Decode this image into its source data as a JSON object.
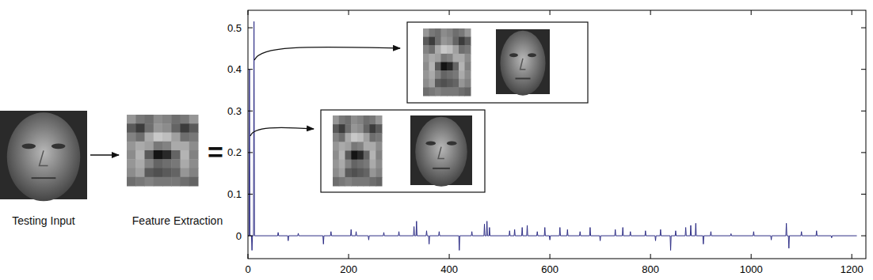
{
  "chart_data": {
    "type": "line",
    "xlim": [
      0,
      1228
    ],
    "xticks": [
      0,
      200,
      400,
      600,
      800,
      1000,
      1200
    ],
    "ylim": [
      -0.055,
      0.542
    ],
    "yticks": [
      0,
      0.1,
      0.2,
      0.3,
      0.4,
      0.5
    ],
    "grid": false,
    "series": [
      {
        "color": "#2e2e86",
        "x": [
          0,
          2,
          3,
          4,
          7,
          8,
          9,
          11,
          12,
          13,
          59,
          60,
          61,
          79,
          80,
          81,
          99,
          100,
          101,
          149,
          150,
          151,
          164,
          165,
          166,
          204,
          205,
          206,
          214,
          215,
          216,
          239,
          240,
          241,
          269,
          270,
          271,
          299,
          300,
          301,
          329,
          330,
          331,
          334,
          335,
          336,
          354,
          355,
          356,
          359,
          360,
          361,
          379,
          380,
          381,
          419,
          420,
          421,
          444,
          445,
          446,
          469,
          470,
          471,
          474,
          475,
          476,
          479,
          480,
          481,
          519,
          520,
          521,
          529,
          530,
          531,
          544,
          545,
          546,
          554,
          555,
          556,
          574,
          575,
          576,
          589,
          590,
          591,
          599,
          600,
          601,
          619,
          620,
          621,
          634,
          635,
          636,
          659,
          660,
          661,
          679,
          680,
          681,
          699,
          700,
          701,
          729,
          730,
          731,
          744,
          745,
          746,
          759,
          760,
          761,
          789,
          790,
          791,
          809,
          810,
          811,
          819,
          820,
          821,
          839,
          840,
          841,
          849,
          850,
          851,
          869,
          870,
          871,
          879,
          880,
          881,
          889,
          890,
          891,
          904,
          905,
          906,
          919,
          920,
          921,
          959,
          960,
          961,
          1004,
          1005,
          1006,
          1039,
          1040,
          1041,
          1069,
          1070,
          1071,
          1074,
          1075,
          1076,
          1099,
          1100,
          1101,
          1129,
          1130,
          1131,
          1159,
          1160,
          1161,
          1210
        ],
        "values": [
          0,
          0,
          0.4,
          0,
          0,
          -0.035,
          0,
          0,
          0.515,
          0,
          0,
          0.008,
          0,
          0,
          -0.012,
          0,
          0,
          0.006,
          0,
          0,
          -0.02,
          0,
          0,
          0.01,
          0,
          0,
          0.015,
          0,
          0,
          0.01,
          0,
          0,
          -0.01,
          0,
          0,
          0.008,
          0,
          0,
          0.01,
          0,
          0,
          0.022,
          0,
          0,
          0.035,
          0,
          0,
          0.012,
          0,
          0,
          -0.02,
          0,
          0,
          0.01,
          0,
          0,
          -0.035,
          0,
          0,
          0.01,
          0,
          0,
          0.028,
          0,
          0,
          0.035,
          0,
          0,
          0.02,
          0,
          0,
          0.012,
          0,
          0,
          0.015,
          0,
          0,
          0.02,
          0,
          0,
          0.025,
          0,
          0,
          0.01,
          0,
          0,
          0.02,
          0,
          0,
          -0.01,
          0,
          0,
          0.02,
          0,
          0,
          0.015,
          0,
          0,
          0.01,
          0,
          0,
          0.02,
          0,
          0,
          -0.012,
          0,
          0,
          0.015,
          0,
          0,
          0.02,
          0,
          0,
          0.01,
          0,
          0,
          0.012,
          0,
          0,
          -0.012,
          0,
          0,
          0.015,
          0,
          0,
          -0.035,
          0,
          0,
          0.012,
          0,
          0,
          0.02,
          0,
          0,
          0.025,
          0,
          0,
          0.03,
          0,
          0,
          -0.02,
          0,
          0,
          0.01,
          0,
          0,
          0.005,
          0,
          0,
          0.01,
          0,
          0,
          -0.01,
          0,
          0,
          0.03,
          0,
          0,
          -0.03,
          0,
          0,
          0.01,
          0,
          0,
          0.012,
          0,
          0,
          -0.005,
          0,
          0
        ]
      }
    ]
  },
  "figure": {
    "testing_input": "Testing Input",
    "feature_extraction": "Feature Extraction",
    "equals": "=",
    "feature_pixels": [
      [
        150,
        120,
        110,
        140,
        130,
        110,
        120,
        150
      ],
      [
        90,
        60,
        110,
        150,
        140,
        100,
        60,
        90
      ],
      [
        130,
        110,
        170,
        200,
        190,
        160,
        110,
        120
      ],
      [
        150,
        170,
        160,
        120,
        130,
        170,
        170,
        140
      ],
      [
        140,
        180,
        90,
        20,
        40,
        100,
        180,
        130
      ],
      [
        150,
        170,
        130,
        100,
        110,
        120,
        170,
        140
      ],
      [
        140,
        160,
        90,
        80,
        90,
        100,
        150,
        130
      ],
      [
        110,
        120,
        130,
        120,
        120,
        120,
        110,
        100
      ]
    ]
  }
}
